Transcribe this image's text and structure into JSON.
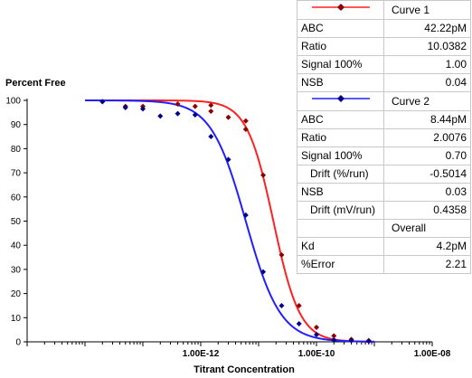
{
  "chart_data": {
    "type": "scatter",
    "title": "",
    "ylabel": "Percent Free",
    "xlabel": "Titrant Concentration",
    "x_scale": "log",
    "xlim": [
      1e-15,
      1e-08
    ],
    "ylim": [
      0,
      100
    ],
    "y_ticks": [
      0,
      10,
      20,
      30,
      40,
      50,
      60,
      70,
      80,
      90,
      100
    ],
    "x_tick_labels": [
      {
        "value": 1e-12,
        "label": "1.00E-12"
      },
      {
        "value": 1e-10,
        "label": "1.00E-10"
      },
      {
        "value": 1e-08,
        "label": "1.00E-08"
      }
    ],
    "grid": false,
    "series": [
      {
        "name": "Curve 1",
        "color": "#8b0000",
        "line_color": "#ff2020",
        "marker": "diamond",
        "points": [
          {
            "x": 2e-14,
            "y": 99.5
          },
          {
            "x": 5e-14,
            "y": 97.5
          },
          {
            "x": 1e-13,
            "y": 97.5
          },
          {
            "x": 4e-13,
            "y": 98.5
          },
          {
            "x": 8e-13,
            "y": 97.5
          },
          {
            "x": 1.5e-12,
            "y": 98
          },
          {
            "x": 1.5e-12,
            "y": 95.5
          },
          {
            "x": 3e-12,
            "y": 93
          },
          {
            "x": 6e-12,
            "y": 91.5
          },
          {
            "x": 6e-12,
            "y": 88
          },
          {
            "x": 1.2e-11,
            "y": 69
          },
          {
            "x": 2.5e-11,
            "y": 36
          },
          {
            "x": 5e-11,
            "y": 15
          },
          {
            "x": 1e-10,
            "y": 6
          },
          {
            "x": 2e-10,
            "y": 2.5
          },
          {
            "x": 4e-10,
            "y": 1
          },
          {
            "x": 8e-10,
            "y": 0.5
          }
        ],
        "fit": {
          "bottom": 0.0,
          "top": 100.0,
          "ec50": 1.8e-11,
          "hill": 1.9
        }
      },
      {
        "name": "Curve 2",
        "color": "#00008b",
        "line_color": "#2020ff",
        "marker": "diamond",
        "points": [
          {
            "x": 2e-14,
            "y": 99.5
          },
          {
            "x": 5e-14,
            "y": 97
          },
          {
            "x": 1e-13,
            "y": 96.5
          },
          {
            "x": 2e-13,
            "y": 93.5
          },
          {
            "x": 4e-13,
            "y": 94.5
          },
          {
            "x": 8e-13,
            "y": 94
          },
          {
            "x": 1.5e-12,
            "y": 85
          },
          {
            "x": 3e-12,
            "y": 75.5
          },
          {
            "x": 6e-12,
            "y": 52.5
          },
          {
            "x": 1.2e-11,
            "y": 29
          },
          {
            "x": 2.5e-11,
            "y": 15
          },
          {
            "x": 5e-11,
            "y": 7.5
          },
          {
            "x": 1e-10,
            "y": 3
          },
          {
            "x": 2e-10,
            "y": 0.8
          },
          {
            "x": 4e-10,
            "y": 0.5
          },
          {
            "x": 8e-10,
            "y": 0.3
          }
        ],
        "fit": {
          "bottom": 0.0,
          "top": 100.0,
          "ec50": 6e-12,
          "hill": 1.45
        }
      }
    ]
  },
  "params_table": {
    "curve1": {
      "name": "Curve 1",
      "color": "#ff2020",
      "rows": [
        {
          "label": "ABC",
          "value": "42.22pM"
        },
        {
          "label": "Ratio",
          "value": "10.0382"
        },
        {
          "label": "Signal 100%",
          "value": "1.00"
        },
        {
          "label": "NSB",
          "value": "0.04"
        }
      ]
    },
    "curve2": {
      "name": "Curve 2",
      "color": "#2020ff",
      "rows": [
        {
          "label": "ABC",
          "value": "8.44pM"
        },
        {
          "label": "Ratio",
          "value": "2.0076"
        },
        {
          "label": "Signal 100%",
          "value": "0.70"
        },
        {
          "label": "Drift (%/run)",
          "value": "-0.5014",
          "indent": true
        },
        {
          "label": "NSB",
          "value": "0.03"
        },
        {
          "label": "Drift (mV/run)",
          "value": "0.4358",
          "indent": true
        }
      ]
    },
    "overall": {
      "name": "Overall",
      "rows": [
        {
          "label": "Kd",
          "value": "4.2pM"
        },
        {
          "label": "%Error",
          "value": "2.21"
        }
      ]
    }
  }
}
